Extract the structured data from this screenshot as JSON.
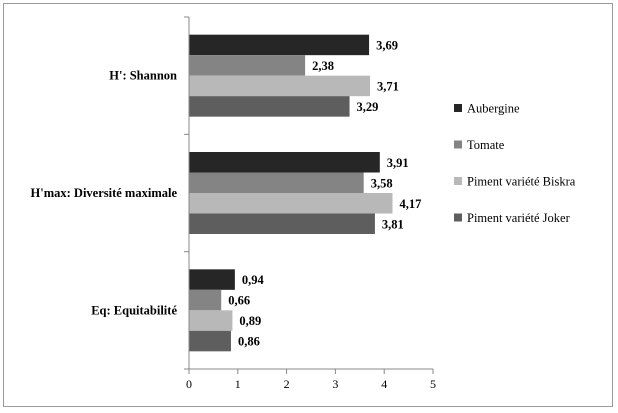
{
  "chart_data": {
    "type": "bar",
    "orientation": "horizontal",
    "categories": [
      "H': Shannon",
      "H'max: Diversité maximale",
      "Eq: Equitabilité"
    ],
    "series": [
      {
        "name": "Aubergine",
        "color": "#262626",
        "values": [
          3.69,
          3.91,
          0.94
        ],
        "labels": [
          "3,69",
          "3,91",
          "0,94"
        ]
      },
      {
        "name": "Tomate",
        "color": "#848484",
        "values": [
          2.38,
          3.58,
          0.66
        ],
        "labels": [
          "2,38",
          "3,58",
          "0,66"
        ]
      },
      {
        "name": "Piment variété Biskra",
        "color": "#b8b8b8",
        "values": [
          3.71,
          4.17,
          0.89
        ],
        "labels": [
          "3,71",
          "4,17",
          "0,89"
        ]
      },
      {
        "name": "Piment variété Joker",
        "color": "#5e5e5e",
        "values": [
          3.29,
          3.81,
          0.86
        ],
        "labels": [
          "3,29",
          "3,81",
          "0,86"
        ]
      }
    ],
    "xlim": [
      0,
      5
    ],
    "xticks": [
      0,
      1,
      2,
      3,
      4,
      5
    ],
    "xtick_labels": [
      "0",
      "1",
      "2",
      "3",
      "4",
      "5"
    ],
    "grid": false,
    "legend_position": "right",
    "title": "",
    "xlabel": "",
    "ylabel": ""
  }
}
